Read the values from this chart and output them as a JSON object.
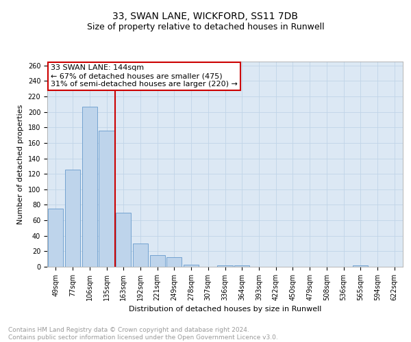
{
  "title1": "33, SWAN LANE, WICKFORD, SS11 7DB",
  "title2": "Size of property relative to detached houses in Runwell",
  "xlabel": "Distribution of detached houses by size in Runwell",
  "ylabel": "Number of detached properties",
  "categories": [
    "49sqm",
    "77sqm",
    "106sqm",
    "135sqm",
    "163sqm",
    "192sqm",
    "221sqm",
    "249sqm",
    "278sqm",
    "307sqm",
    "336sqm",
    "364sqm",
    "393sqm",
    "422sqm",
    "450sqm",
    "479sqm",
    "508sqm",
    "536sqm",
    "565sqm",
    "594sqm",
    "622sqm"
  ],
  "values": [
    75,
    125,
    207,
    176,
    70,
    30,
    15,
    12,
    3,
    0,
    2,
    2,
    0,
    0,
    0,
    0,
    0,
    0,
    2,
    0,
    0
  ],
  "bar_color": "#bed4eb",
  "bar_edge_color": "#6699cc",
  "reference_line_color": "#cc0000",
  "reference_line_index": 3.5,
  "annotation_line1": "33 SWAN LANE: 144sqm",
  "annotation_line2": "← 67% of detached houses are smaller (475)",
  "annotation_line3": "31% of semi-detached houses are larger (220) →",
  "annotation_box_color": "#ffffff",
  "annotation_box_edge_color": "#cc0000",
  "ylim": [
    0,
    265
  ],
  "yticks": [
    0,
    20,
    40,
    60,
    80,
    100,
    120,
    140,
    160,
    180,
    200,
    220,
    240,
    260
  ],
  "grid_color": "#c0d4e8",
  "background_color": "#dce8f4",
  "footer_text": "Contains HM Land Registry data © Crown copyright and database right 2024.\nContains public sector information licensed under the Open Government Licence v3.0.",
  "title_fontsize": 10,
  "subtitle_fontsize": 9,
  "axis_label_fontsize": 8,
  "tick_fontsize": 7,
  "annotation_fontsize": 8,
  "footer_fontsize": 6.5
}
